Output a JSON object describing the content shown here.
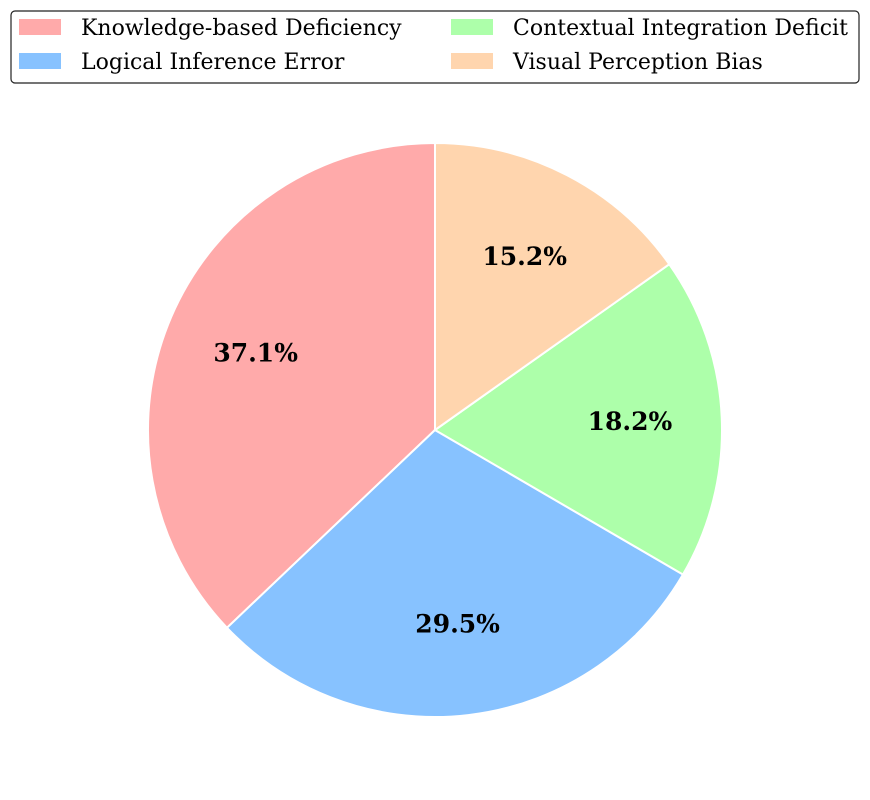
{
  "chart_data": {
    "type": "pie",
    "title": "",
    "categories": [
      "Knowledge-based Deficiency",
      "Logical Inference Error",
      "Contextual Integration Deficit",
      "Visual Perception Bias"
    ],
    "values": [
      37.1,
      29.5,
      18.2,
      15.2
    ],
    "labels": [
      "37.1%",
      "29.5%",
      "18.2%",
      "15.2%"
    ],
    "colors": [
      "#ffaaaa",
      "#87c2ff",
      "#adffaa",
      "#ffd5ae"
    ],
    "start_angle_deg": 90,
    "direction": "counterclockwise",
    "legend": {
      "placement": "top",
      "columns": 2,
      "entries": [
        "Knowledge-based Deficiency",
        "Contextual Integration Deficit",
        "Logical Inference Error",
        "Visual Perception Bias"
      ]
    }
  }
}
